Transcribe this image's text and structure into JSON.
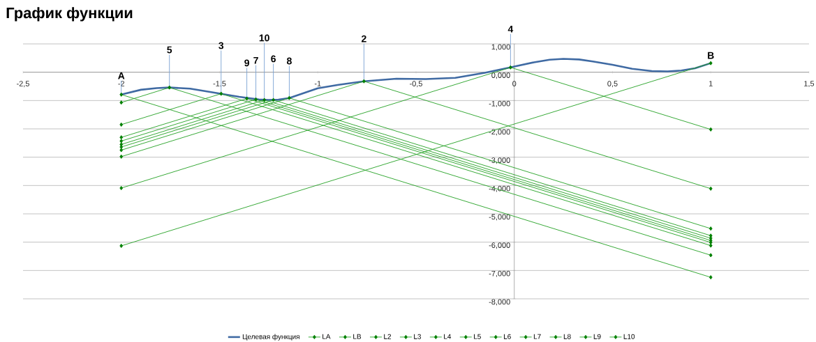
{
  "chart_data": {
    "type": "line",
    "title": "График функции",
    "xlim": [
      -2.5,
      1.5
    ],
    "xticks": [
      {
        "value": -2.5,
        "label": "-2,5"
      },
      -2,
      {
        "value": -1.5,
        "label": "-1,5"
      },
      -1,
      {
        "value": -0.5,
        "label": "-0,5"
      },
      0,
      {
        "value": 0.5,
        "label": "0,5"
      },
      1,
      {
        "value": 1.5,
        "label": "1,5"
      }
    ],
    "ylim": [
      -8,
      1
    ],
    "yticks": [
      {
        "value": -8,
        "label": "-8,000"
      },
      {
        "value": -7,
        "label": "-7,000"
      },
      {
        "value": -6,
        "label": "-6,000"
      },
      {
        "value": -5,
        "label": "-5,000"
      },
      {
        "value": -4,
        "label": "-4,000"
      },
      {
        "value": -3,
        "label": "-3,000"
      },
      {
        "value": -2,
        "label": "-2,000"
      },
      {
        "value": -1,
        "label": "-1,000"
      },
      {
        "value": 0,
        "label": "0,000"
      },
      {
        "value": 1,
        "label": "1,000"
      }
    ],
    "grid": "y",
    "legend": "bottom",
    "marker": "diamond",
    "series": [
      {
        "name": "Целевая функция",
        "color": "#3f6aa3",
        "marker": "none",
        "x": [
          -2,
          -1.9,
          -1.82,
          -1.755,
          -1.65,
          -1.5,
          -1.4,
          -1.3,
          -1.25,
          -1.2,
          -1.145,
          -1.0,
          -0.9,
          -0.765,
          -0.6,
          -0.45,
          -0.3,
          -0.15,
          -0.02,
          0.1,
          0.18,
          0.25,
          0.33,
          0.4,
          0.5,
          0.6,
          0.7,
          0.78,
          0.85,
          0.92,
          1
        ],
        "values": [
          -0.79,
          -0.62,
          -0.56,
          -0.54,
          -0.58,
          -0.75,
          -0.87,
          -0.96,
          -0.98,
          -0.97,
          -0.91,
          -0.57,
          -0.45,
          -0.32,
          -0.23,
          -0.24,
          -0.2,
          -0.02,
          0.17,
          0.35,
          0.44,
          0.47,
          0.45,
          0.38,
          0.26,
          0.12,
          0.04,
          0.03,
          0.06,
          0.14,
          0.32
        ]
      },
      {
        "name": "LA",
        "color": "#22a022",
        "x": [
          -2,
          1
        ],
        "values": [
          -0.79,
          -7.24
        ]
      },
      {
        "name": "LB",
        "color": "#22a022",
        "x": [
          -2,
          1
        ],
        "values": [
          -6.13,
          0.32
        ]
      },
      {
        "name": "L2",
        "color": "#22a022",
        "x": [
          -2,
          -0.765,
          1
        ],
        "values": [
          -2.98,
          -0.32,
          -4.11
        ]
      },
      {
        "name": "L3",
        "color": "#22a022",
        "x": [
          -2,
          -1.492,
          1
        ],
        "values": [
          -1.85,
          -0.76,
          -6.12
        ]
      },
      {
        "name": "L4",
        "color": "#22a022",
        "x": [
          -2,
          -0.019,
          1
        ],
        "values": [
          -4.09,
          0.17,
          -2.02
        ]
      },
      {
        "name": "L5",
        "color": "#22a022",
        "x": [
          -2,
          -1.755,
          1
        ],
        "values": [
          -1.07,
          -0.54,
          -6.46
        ]
      },
      {
        "name": "L6",
        "color": "#22a022",
        "x": [
          -2,
          -1.226,
          1
        ],
        "values": [
          -2.64,
          -0.98,
          -5.77
        ]
      },
      {
        "name": "L7",
        "color": "#22a022",
        "x": [
          -2,
          -1.315,
          1
        ],
        "values": [
          -2.43,
          -0.96,
          -5.94
        ]
      },
      {
        "name": "L8",
        "color": "#22a022",
        "x": [
          -2,
          -1.145,
          1
        ],
        "values": [
          -2.75,
          -0.91,
          -5.52
        ]
      },
      {
        "name": "L9",
        "color": "#22a022",
        "x": [
          -2,
          -1.361,
          1
        ],
        "values": [
          -2.3,
          -0.93,
          -6.01
        ]
      },
      {
        "name": "L10",
        "color": "#22a022",
        "x": [
          -2,
          -1.272,
          1
        ],
        "values": [
          -2.55,
          -0.98,
          -5.86
        ]
      }
    ],
    "annotations": [
      {
        "text": "A",
        "x": -2,
        "y": -0.79
      },
      {
        "text": "5",
        "x": -1.755,
        "y": -0.54
      },
      {
        "text": "3",
        "x": -1.492,
        "y": -0.76
      },
      {
        "text": "9",
        "x": -1.361,
        "y": -0.93
      },
      {
        "text": "7",
        "x": -1.315,
        "y": -0.96
      },
      {
        "text": "10",
        "x": -1.272,
        "y": -0.98
      },
      {
        "text": "6",
        "x": -1.226,
        "y": -0.98
      },
      {
        "text": "8",
        "x": -1.145,
        "y": -0.91
      },
      {
        "text": "2",
        "x": -0.765,
        "y": -0.32
      },
      {
        "text": "4",
        "x": -0.019,
        "y": 0.17
      },
      {
        "text": "B",
        "x": 1,
        "y": 0.32
      }
    ]
  }
}
